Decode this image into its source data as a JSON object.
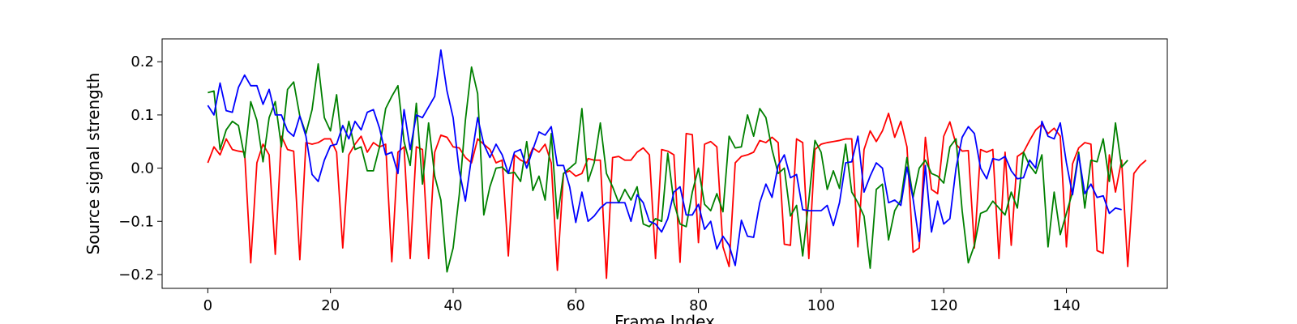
{
  "chart_data": {
    "type": "line",
    "title": "",
    "xlabel": "Frame Index",
    "ylabel": "Source signal strength",
    "xlim": [
      -7.45,
      156.45
    ],
    "ylim": [
      -0.226,
      0.243
    ],
    "xticks": [
      0,
      20,
      40,
      60,
      80,
      100,
      120,
      140
    ],
    "yticks": [
      -0.2,
      -0.1,
      0.0,
      0.1,
      0.2
    ],
    "ytick_labels": [
      "−0.2",
      "−0.1",
      "0.0",
      "0.1",
      "0.2"
    ],
    "grid": false,
    "legend": "none",
    "series": [
      {
        "color": "#ff0000",
        "values": [
          0.01,
          0.04,
          0.025,
          0.055,
          0.035,
          0.032,
          0.03,
          -0.178,
          0.01,
          0.045,
          0.025,
          -0.162,
          0.06,
          0.035,
          0.032,
          -0.172,
          0.048,
          0.045,
          0.048,
          0.055,
          0.055,
          0.03,
          -0.15,
          0.025,
          0.045,
          0.06,
          0.03,
          0.048,
          0.04,
          0.045,
          -0.176,
          0.03,
          0.04,
          -0.17,
          0.04,
          0.035,
          -0.17,
          0.03,
          0.062,
          0.058,
          0.04,
          0.038,
          0.02,
          0.01,
          0.055,
          0.045,
          0.035,
          0.01,
          0.015,
          -0.165,
          0.025,
          0.015,
          0.01,
          0.038,
          0.03,
          0.045,
          0.01,
          -0.192,
          -0.01,
          -0.005,
          -0.015,
          -0.01,
          0.018,
          0.015,
          0.015,
          -0.207,
          0.02,
          0.022,
          0.015,
          0.015,
          0.03,
          0.038,
          0.025,
          -0.17,
          0.035,
          0.032,
          0.025,
          -0.177,
          0.065,
          0.063,
          -0.14,
          0.045,
          0.05,
          0.04,
          -0.148,
          -0.185,
          0.01,
          0.022,
          0.025,
          0.03,
          0.052,
          0.048,
          0.058,
          0.048,
          -0.143,
          -0.145,
          0.055,
          0.048,
          -0.17,
          0.035,
          0.045,
          0.048,
          0.05,
          0.052,
          0.055,
          0.055,
          -0.148,
          0.035,
          0.07,
          0.05,
          0.07,
          0.103,
          0.058,
          0.088,
          0.04,
          -0.158,
          -0.15,
          0.058,
          -0.04,
          -0.048,
          0.06,
          0.087,
          0.045,
          0.032,
          0.033,
          -0.15,
          0.035,
          0.03,
          0.035,
          -0.17,
          0.03,
          -0.145,
          0.022,
          0.03,
          0.052,
          0.072,
          0.082,
          0.065,
          0.075,
          0.06,
          -0.148,
          0.008,
          0.038,
          0.048,
          0.045,
          -0.155,
          -0.16,
          0.025,
          -0.045,
          0.015,
          -0.185,
          -0.01,
          0.005,
          0.015
        ]
      },
      {
        "color": "#008000",
        "values": [
          0.142,
          0.145,
          0.035,
          0.072,
          0.088,
          0.08,
          0.02,
          0.125,
          0.09,
          0.012,
          0.095,
          0.125,
          0.04,
          0.148,
          0.162,
          0.098,
          0.065,
          0.11,
          0.196,
          0.095,
          0.07,
          0.138,
          0.03,
          0.088,
          0.035,
          0.04,
          -0.005,
          -0.005,
          0.04,
          0.112,
          0.135,
          0.155,
          0.05,
          0.005,
          0.122,
          -0.03,
          0.085,
          -0.015,
          -0.06,
          -0.195,
          -0.15,
          -0.05,
          0.09,
          0.19,
          0.14,
          -0.088,
          -0.035,
          0.0,
          0.002,
          -0.01,
          -0.008,
          -0.025,
          0.05,
          -0.042,
          -0.015,
          -0.06,
          0.065,
          -0.095,
          -0.01,
          0.0,
          0.01,
          0.112,
          -0.025,
          0.01,
          0.085,
          -0.01,
          -0.035,
          -0.065,
          -0.04,
          -0.06,
          -0.035,
          -0.105,
          -0.11,
          -0.095,
          -0.1,
          0.028,
          -0.065,
          -0.105,
          -0.11,
          -0.045,
          0.0,
          -0.068,
          -0.08,
          -0.048,
          -0.082,
          0.06,
          0.038,
          0.04,
          0.1,
          0.06,
          0.112,
          0.095,
          0.035,
          -0.01,
          0.0,
          -0.09,
          -0.07,
          -0.165,
          -0.06,
          0.052,
          0.03,
          -0.04,
          -0.005,
          -0.038,
          0.045,
          -0.045,
          -0.065,
          -0.09,
          -0.188,
          -0.04,
          -0.03,
          -0.135,
          -0.08,
          -0.06,
          0.02,
          -0.055,
          0.0,
          0.015,
          -0.01,
          -0.015,
          -0.028,
          0.04,
          0.055,
          -0.08,
          -0.178,
          -0.145,
          -0.085,
          -0.08,
          -0.062,
          -0.075,
          -0.088,
          -0.045,
          -0.075,
          0.03,
          0.005,
          -0.01,
          0.025,
          -0.148,
          -0.045,
          -0.125,
          -0.085,
          -0.045,
          0.03,
          -0.075,
          0.015,
          0.012,
          0.055,
          -0.025,
          0.085,
          0.002,
          0.015
        ]
      },
      {
        "color": "#0000ff",
        "values": [
          0.118,
          0.1,
          0.16,
          0.108,
          0.105,
          0.152,
          0.175,
          0.155,
          0.155,
          0.12,
          0.148,
          0.1,
          0.1,
          0.07,
          0.06,
          0.098,
          0.06,
          -0.012,
          -0.025,
          0.015,
          0.042,
          0.045,
          0.08,
          0.055,
          0.088,
          0.072,
          0.105,
          0.11,
          0.075,
          0.025,
          0.03,
          -0.01,
          0.11,
          0.035,
          0.1,
          0.095,
          0.115,
          0.135,
          0.222,
          0.145,
          0.095,
          -0.005,
          -0.062,
          0.02,
          0.095,
          0.045,
          0.02,
          0.045,
          0.025,
          -0.01,
          0.03,
          0.035,
          0.0,
          0.035,
          0.068,
          0.062,
          0.078,
          0.005,
          0.005,
          -0.035,
          -0.102,
          -0.045,
          -0.1,
          -0.09,
          -0.075,
          -0.065,
          -0.065,
          -0.065,
          -0.065,
          -0.1,
          -0.05,
          -0.065,
          -0.1,
          -0.105,
          -0.12,
          -0.095,
          -0.045,
          -0.035,
          -0.088,
          -0.088,
          -0.068,
          -0.115,
          -0.1,
          -0.152,
          -0.128,
          -0.145,
          -0.183,
          -0.098,
          -0.128,
          -0.13,
          -0.065,
          -0.03,
          -0.055,
          0.005,
          0.025,
          -0.018,
          -0.012,
          -0.078,
          -0.08,
          -0.08,
          -0.08,
          -0.07,
          -0.108,
          -0.065,
          0.01,
          0.012,
          0.06,
          -0.045,
          -0.015,
          0.01,
          0.0,
          -0.065,
          -0.06,
          -0.07,
          0.002,
          -0.058,
          -0.138,
          0.005,
          -0.12,
          -0.062,
          -0.105,
          -0.095,
          0.0,
          0.058,
          0.078,
          0.065,
          0.0,
          -0.02,
          0.018,
          0.015,
          0.022,
          -0.005,
          -0.02,
          -0.018,
          0.015,
          0.0,
          0.088,
          0.06,
          0.055,
          0.085,
          0.01,
          -0.05,
          0.025,
          -0.048,
          -0.03,
          -0.055,
          -0.052,
          -0.085,
          -0.075,
          -0.078
        ]
      }
    ]
  }
}
